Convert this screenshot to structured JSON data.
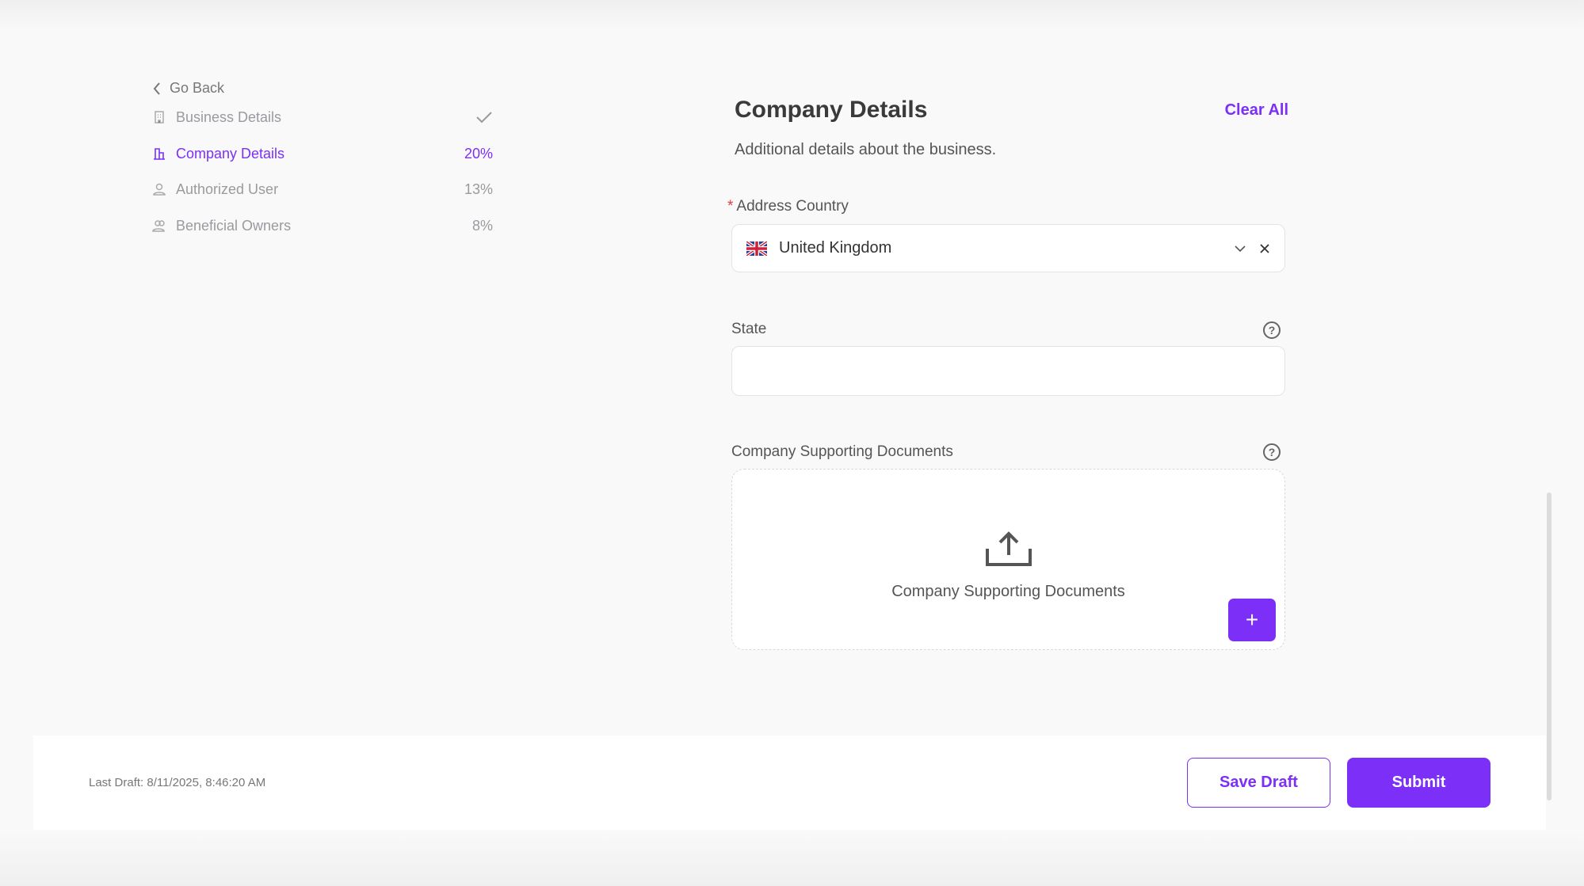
{
  "nav": {
    "go_back": "Go Back",
    "items": [
      {
        "label": "Business Details",
        "status": "complete",
        "icon": "building-icon"
      },
      {
        "label": "Company Details",
        "percent": "20%",
        "icon": "company-icon",
        "active": true
      },
      {
        "label": "Authorized User",
        "percent": "13%",
        "icon": "user-icon"
      },
      {
        "label": "Beneficial Owners",
        "percent": "8%",
        "icon": "users-icon"
      }
    ]
  },
  "main": {
    "title": "Company Details",
    "clear_all": "Clear All",
    "subtitle": "Additional details about the business.",
    "address_country": {
      "label": "Address Country",
      "required_mark": "*",
      "value": "United Kingdom",
      "flag": "uk-flag-icon"
    },
    "state": {
      "label": "State",
      "value": ""
    },
    "documents": {
      "label": "Company Supporting Documents",
      "dropzone_text": "Company Supporting Documents",
      "add_label": "+"
    }
  },
  "footer": {
    "last_draft": "Last Draft: 8/11/2025, 8:46:20 AM",
    "save_draft": "Save Draft",
    "submit": "Submit"
  },
  "colors": {
    "accent": "#7b2ff7",
    "required": "#e53935"
  }
}
